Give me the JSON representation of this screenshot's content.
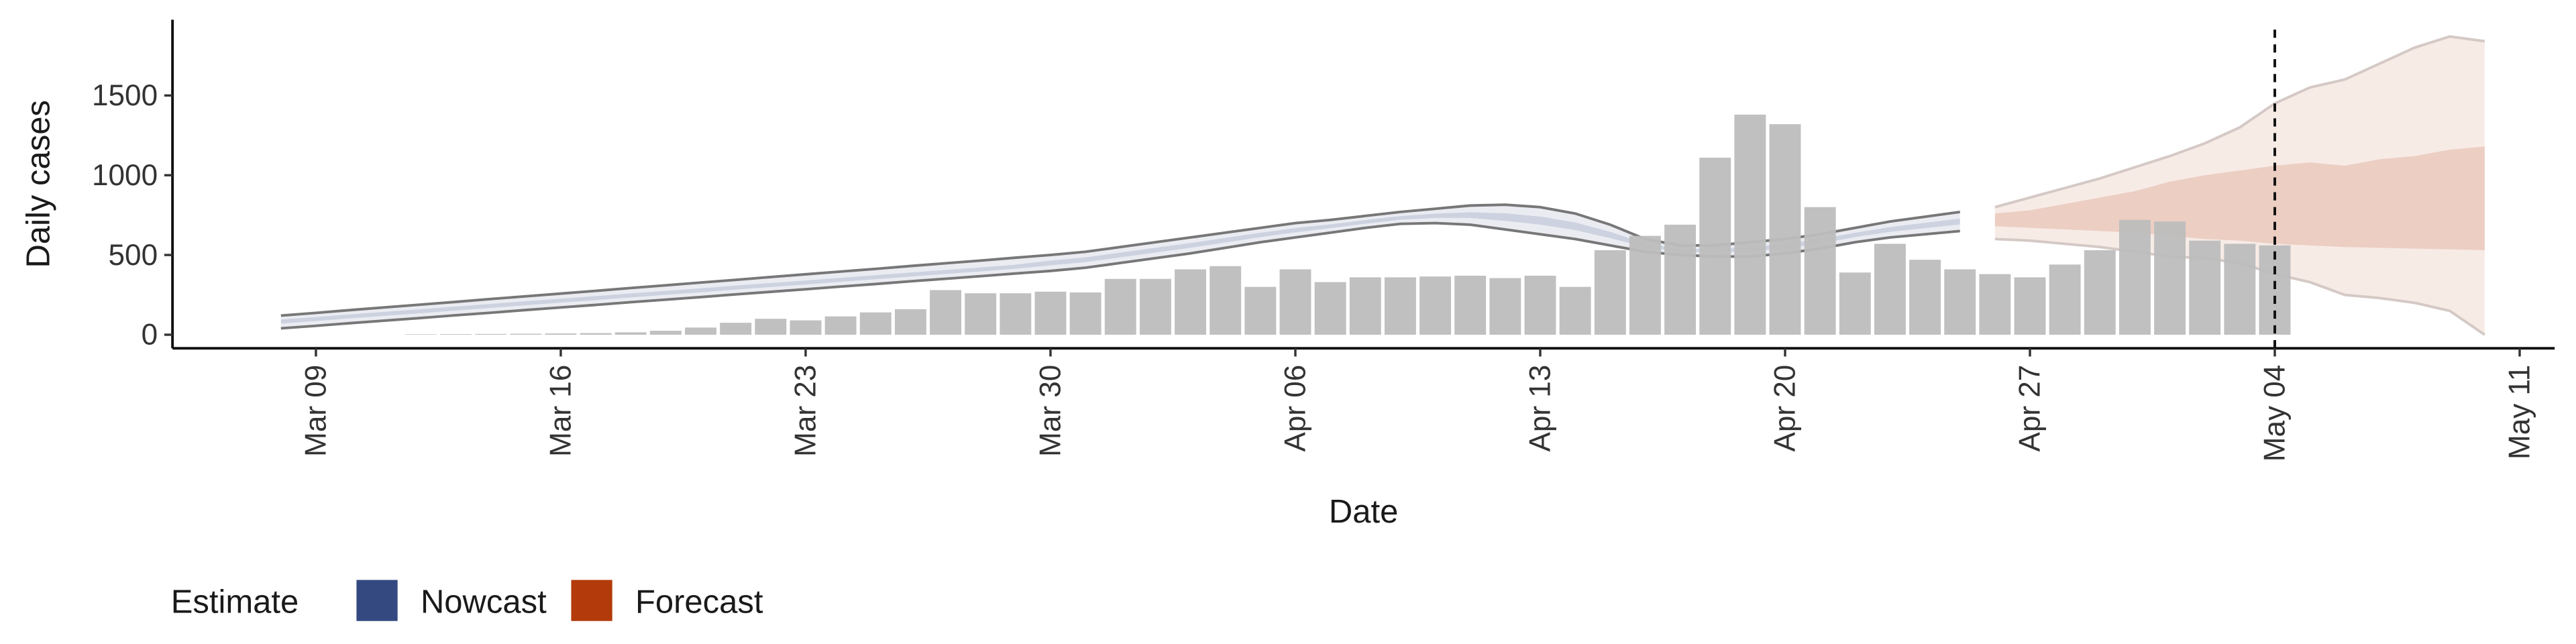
{
  "chart_data": {
    "type": "band-bar",
    "x_label": "Date",
    "y_label": "Daily cases",
    "legend_title": "Estimate",
    "categories": [
      null,
      "Mar 09",
      null,
      null,
      null,
      null,
      null,
      null,
      "Mar 16",
      null,
      null,
      null,
      null,
      null,
      null,
      "Mar 23",
      null,
      null,
      null,
      null,
      null,
      null,
      "Mar 30",
      null,
      null,
      null,
      null,
      null,
      null,
      "Apr 06",
      null,
      null,
      null,
      null,
      null,
      null,
      "Apr 13",
      null,
      null,
      null,
      null,
      null,
      null,
      "Apr 20",
      null,
      null,
      null,
      null,
      null,
      null,
      "Apr 27",
      null,
      null,
      null,
      null,
      null,
      null,
      "May 04",
      null,
      null,
      null,
      null,
      null,
      null,
      "May 11"
    ],
    "xlim": [
      -3.1,
      65
    ],
    "ylim": [
      -85,
      1975
    ],
    "yticks": [
      0,
      500,
      1000,
      1500
    ],
    "bar_color": "#bdbdbd",
    "values": [
      null,
      null,
      null,
      null,
      3,
      4,
      5,
      6,
      8,
      10,
      15,
      25,
      45,
      75,
      100,
      90,
      115,
      140,
      160,
      280,
      260,
      260,
      270,
      265,
      350,
      350,
      410,
      430,
      300,
      410,
      330,
      360,
      360,
      365,
      370,
      355,
      370,
      300,
      530,
      620,
      690,
      1110,
      1380,
      1320,
      800,
      390,
      570,
      470,
      410,
      380,
      360,
      440,
      530,
      720,
      710,
      590,
      570,
      560,
      null,
      null,
      null,
      null,
      null,
      null,
      null
    ],
    "series": [
      {
        "name": "Nowcast",
        "color": "#34497f",
        "upper": [
          120,
          137,
          155,
          172,
          189,
          206,
          224,
          241,
          258,
          275,
          293,
          310,
          327,
          344,
          362,
          379,
          396,
          413,
          431,
          448,
          465,
          483,
          500,
          520,
          550,
          580,
          610,
          640,
          670,
          700,
          720,
          745,
          770,
          790,
          810,
          815,
          800,
          760,
          690,
          600,
          560,
          560,
          580,
          600,
          630,
          670,
          710,
          740,
          770,
          null,
          null,
          null,
          null,
          null,
          null,
          null,
          null,
          null,
          null,
          null,
          null,
          null,
          null,
          null,
          null
        ],
        "inner_upper": [
          95,
          111,
          128,
          144,
          160,
          177,
          193,
          210,
          226,
          242,
          259,
          275,
          291,
          308,
          324,
          340,
          357,
          373,
          390,
          406,
          422,
          439,
          465,
          485,
          515,
          545,
          575,
          607,
          639,
          669,
          692,
          719,
          744,
          759,
          768,
          761,
          741,
          704,
          645,
          572,
          539,
          536,
          549,
          569,
          599,
          639,
          675,
          702,
          728,
          null,
          null,
          null,
          null,
          null,
          null,
          null,
          null,
          null,
          null,
          null,
          null,
          null,
          null,
          null,
          null
        ],
        "inner_lower": [
          70,
          86,
          103,
          119,
          135,
          152,
          168,
          185,
          201,
          217,
          234,
          250,
          266,
          283,
          299,
          315,
          332,
          348,
          365,
          381,
          397,
          414,
          435,
          455,
          485,
          515,
          545,
          578,
          612,
          642,
          668,
          696,
          721,
          732,
          732,
          714,
          690,
          656,
          606,
          548,
          521,
          515,
          522,
          542,
          572,
          612,
          645,
          668,
          692,
          null,
          null,
          null,
          null,
          null,
          null,
          null,
          null,
          null,
          null,
          null,
          null,
          null,
          null,
          null,
          null
        ],
        "lower": [
          40,
          56,
          73,
          89,
          105,
          122,
          138,
          155,
          171,
          187,
          204,
          220,
          236,
          253,
          269,
          285,
          302,
          318,
          335,
          351,
          367,
          384,
          400,
          420,
          450,
          480,
          510,
          545,
          580,
          610,
          640,
          670,
          695,
          700,
          690,
          660,
          630,
          600,
          560,
          520,
          500,
          490,
          490,
          510,
          540,
          580,
          610,
          630,
          650,
          null,
          null,
          null,
          null,
          null,
          null,
          null,
          null,
          null,
          null,
          null,
          null,
          null,
          null,
          null,
          null
        ]
      },
      {
        "name": "Forecast",
        "color": "#b33a0a",
        "upper": [
          null,
          null,
          null,
          null,
          null,
          null,
          null,
          null,
          null,
          null,
          null,
          null,
          null,
          null,
          null,
          null,
          null,
          null,
          null,
          null,
          null,
          null,
          null,
          null,
          null,
          null,
          null,
          null,
          null,
          null,
          null,
          null,
          null,
          null,
          null,
          null,
          null,
          null,
          null,
          null,
          null,
          null,
          null,
          null,
          null,
          null,
          null,
          null,
          null,
          800,
          860,
          920,
          980,
          1050,
          1120,
          1200,
          1300,
          1450,
          1550,
          1600,
          1700,
          1800,
          1870,
          1840,
          null
        ],
        "inner_upper": [
          null,
          null,
          null,
          null,
          null,
          null,
          null,
          null,
          null,
          null,
          null,
          null,
          null,
          null,
          null,
          null,
          null,
          null,
          null,
          null,
          null,
          null,
          null,
          null,
          null,
          null,
          null,
          null,
          null,
          null,
          null,
          null,
          null,
          null,
          null,
          null,
          null,
          null,
          null,
          null,
          null,
          null,
          null,
          null,
          null,
          null,
          null,
          null,
          null,
          760,
          780,
          820,
          860,
          900,
          960,
          1000,
          1030,
          1060,
          1080,
          1060,
          1100,
          1120,
          1160,
          1180,
          null
        ],
        "inner_lower": [
          null,
          null,
          null,
          null,
          null,
          null,
          null,
          null,
          null,
          null,
          null,
          null,
          null,
          null,
          null,
          null,
          null,
          null,
          null,
          null,
          null,
          null,
          null,
          null,
          null,
          null,
          null,
          null,
          null,
          null,
          null,
          null,
          null,
          null,
          null,
          null,
          null,
          null,
          null,
          null,
          null,
          null,
          null,
          null,
          null,
          null,
          null,
          null,
          null,
          680,
          670,
          660,
          650,
          640,
          620,
          600,
          590,
          570,
          560,
          550,
          545,
          540,
          535,
          530,
          null
        ],
        "lower": [
          null,
          null,
          null,
          null,
          null,
          null,
          null,
          null,
          null,
          null,
          null,
          null,
          null,
          null,
          null,
          null,
          null,
          null,
          null,
          null,
          null,
          null,
          null,
          null,
          null,
          null,
          null,
          null,
          null,
          null,
          null,
          null,
          null,
          null,
          null,
          null,
          null,
          null,
          null,
          null,
          null,
          null,
          null,
          null,
          null,
          null,
          null,
          null,
          null,
          600,
          590,
          570,
          550,
          520,
          490,
          480,
          450,
          380,
          330,
          250,
          230,
          200,
          150,
          0,
          null
        ]
      }
    ]
  }
}
